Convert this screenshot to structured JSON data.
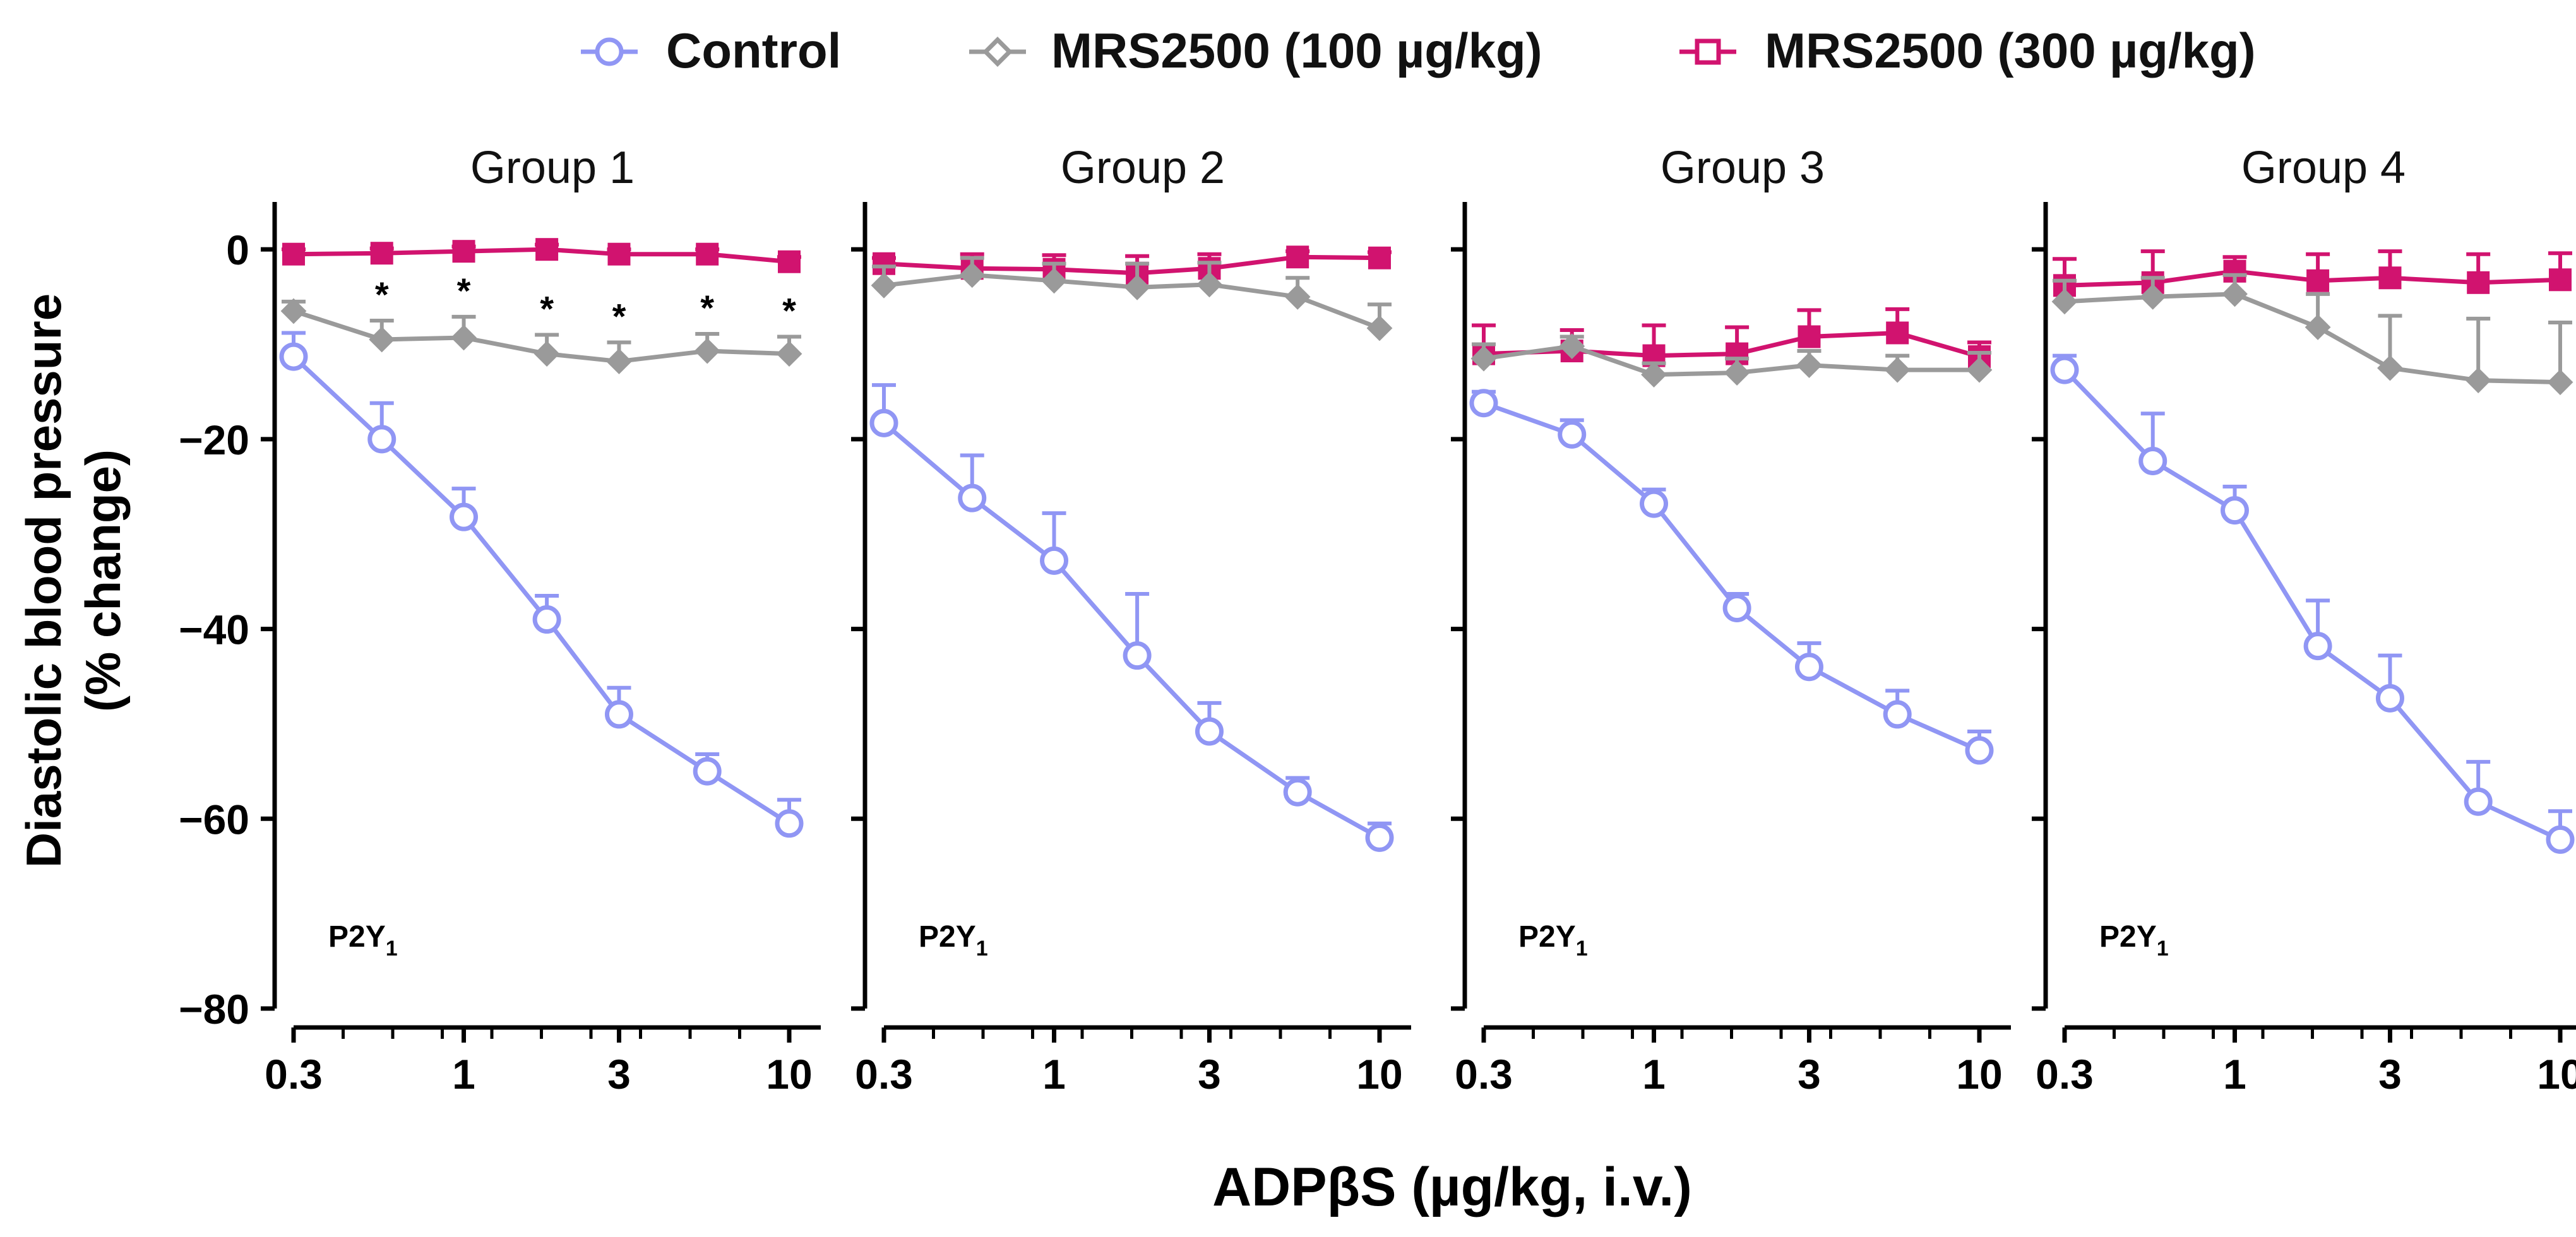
{
  "chart_data": {
    "type": "line",
    "legend_position": "top-center",
    "x_label": "ADPβS (µg/kg, i.v.)",
    "y_label_line1": "Diastolic blood pressure",
    "y_label_line2": "(% change)",
    "x_scale": "log",
    "x_ticks": [
      0.3,
      1,
      3,
      10
    ],
    "x_tick_labels": [
      "0.3",
      "1",
      "3",
      "10"
    ],
    "x_range": [
      0.24,
      13.5
    ],
    "y_ticks": [
      0,
      -20,
      -40,
      -60,
      -80
    ],
    "y_tick_labels": [
      "0",
      "−20",
      "−40",
      "−60",
      "−80"
    ],
    "y_range": [
      -80,
      5
    ],
    "x": [
      0.3,
      0.56,
      1,
      1.8,
      3,
      5.6,
      10
    ],
    "legend": [
      {
        "key": "control",
        "name": "Control",
        "color": "#9096F4",
        "marker": "circle-open"
      },
      {
        "key": "mrs100",
        "name": "MRS2500 (100 µg/kg)",
        "color": "#9A9A9A",
        "marker": "diamond"
      },
      {
        "key": "mrs300",
        "name": "MRS2500 (300 µg/kg)",
        "color": "#D1136F",
        "marker": "square"
      }
    ],
    "panels": [
      {
        "title": "Group 1",
        "annotation": "P2Y",
        "annotation_sub": "1",
        "series": [
          {
            "key": "mrs300",
            "values": [
              -0.5,
              -0.4,
              -0.2,
              0.0,
              -0.5,
              -0.5,
              -1.3
            ],
            "errors": [
              0.5,
              0.5,
              0.5,
              0.5,
              0.5,
              0.5,
              0.5
            ]
          },
          {
            "key": "mrs100",
            "values": [
              -6.5,
              -9.5,
              -9.3,
              -11.0,
              -11.8,
              -10.7,
              -11.0
            ],
            "errors": [
              1.0,
              2.0,
              2.2,
              2.0,
              2.0,
              1.8,
              1.8
            ]
          },
          {
            "key": "control",
            "values": [
              -11.3,
              -20.0,
              -28.2,
              -39.0,
              -49.0,
              -55.0,
              -60.5
            ],
            "errors": [
              2.5,
              3.8,
              3.0,
              2.5,
              2.8,
              1.8,
              2.5
            ]
          }
        ],
        "significance": [
          "",
          "*",
          "*",
          "*",
          "*",
          "*",
          "*"
        ]
      },
      {
        "title": "Group 2",
        "annotation": "P2Y",
        "annotation_sub": "1",
        "series": [
          {
            "key": "mrs300",
            "values": [
              -1.5,
              -2.0,
              -2.1,
              -2.5,
              -2.0,
              -0.8,
              -0.9
            ],
            "errors": [
              0.6,
              1.5,
              1.5,
              1.8,
              1.5,
              0.6,
              0.6
            ]
          },
          {
            "key": "mrs100",
            "values": [
              -3.8,
              -2.7,
              -3.3,
              -4.0,
              -3.7,
              -5.0,
              -8.3
            ],
            "errors": [
              2.0,
              1.8,
              1.8,
              2.5,
              2.3,
              2.0,
              2.5
            ]
          },
          {
            "key": "control",
            "values": [
              -18.3,
              -26.2,
              -32.8,
              -42.8,
              -50.8,
              -57.2,
              -62.0
            ],
            "errors": [
              4.0,
              4.5,
              5.0,
              6.5,
              3.0,
              1.5,
              1.5
            ]
          }
        ],
        "significance": [
          "",
          "",
          "",
          "",
          "",
          "",
          ""
        ]
      },
      {
        "title": "Group 3",
        "annotation": "P2Y",
        "annotation_sub": "1",
        "series": [
          {
            "key": "mrs300",
            "values": [
              -11.0,
              -10.7,
              -11.2,
              -11.0,
              -9.2,
              -8.8,
              -11.3
            ],
            "errors": [
              3.0,
              2.2,
              3.2,
              2.8,
              2.8,
              2.5,
              1.5
            ]
          },
          {
            "key": "mrs100",
            "values": [
              -11.5,
              -10.2,
              -13.2,
              -13.0,
              -12.2,
              -12.7,
              -12.7
            ],
            "errors": [
              1.5,
              1.0,
              1.2,
              1.5,
              1.5,
              1.5,
              1.8
            ]
          },
          {
            "key": "control",
            "values": [
              -16.2,
              -19.5,
              -26.8,
              -37.8,
              -44.0,
              -49.0,
              -52.8
            ],
            "errors": [
              1.2,
              1.5,
              1.5,
              1.5,
              2.5,
              2.5,
              2.0
            ]
          }
        ],
        "significance": [
          "",
          "",
          "",
          "",
          "",
          "",
          ""
        ]
      },
      {
        "title": "Group 4",
        "annotation": "P2Y",
        "annotation_sub": "1",
        "series": [
          {
            "key": "mrs300",
            "values": [
              -3.8,
              -3.5,
              -2.3,
              -3.3,
              -3.0,
              -3.5,
              -3.2
            ],
            "errors": [
              2.8,
              3.3,
              1.5,
              2.8,
              2.8,
              3.0,
              2.8
            ]
          },
          {
            "key": "mrs100",
            "values": [
              -5.5,
              -5.0,
              -4.7,
              -8.2,
              -12.5,
              -13.8,
              -14.0
            ],
            "errors": [
              2.2,
              2.0,
              2.0,
              3.5,
              5.5,
              6.5,
              6.3
            ]
          },
          {
            "key": "control",
            "values": [
              -12.7,
              -22.3,
              -27.5,
              -41.8,
              -47.3,
              -58.2,
              -62.2
            ],
            "errors": [
              1.5,
              5.0,
              2.5,
              4.8,
              4.5,
              4.2,
              3.0
            ]
          }
        ],
        "significance": [
          "",
          "",
          "",
          "",
          "",
          "",
          ""
        ]
      }
    ]
  }
}
